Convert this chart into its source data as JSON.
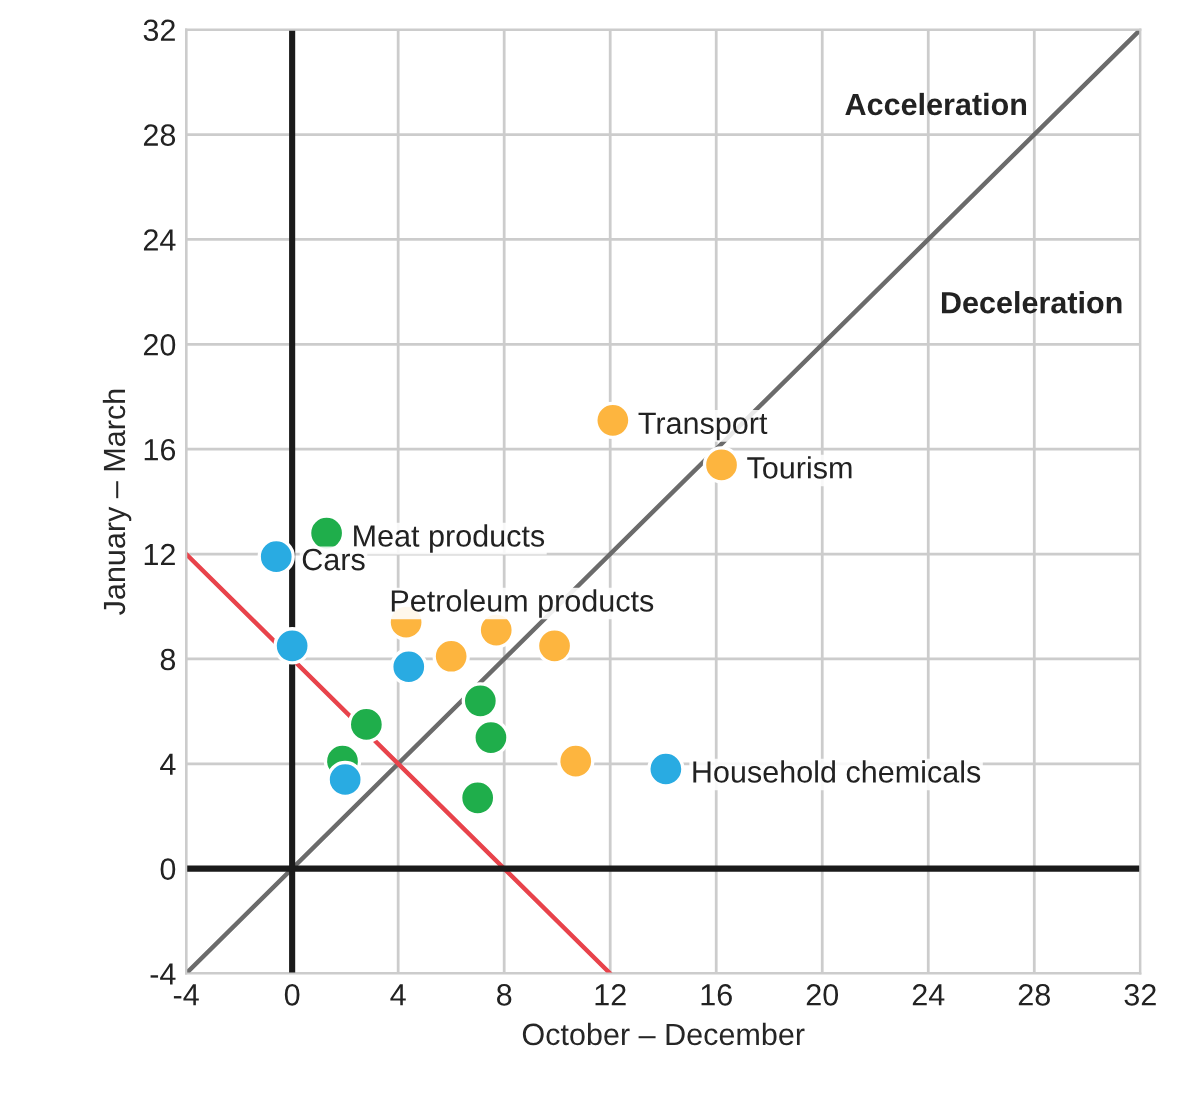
{
  "chart_data": {
    "type": "scatter",
    "xlabel": "October – December",
    "ylabel": "January – March",
    "xlim": [
      -4,
      32
    ],
    "ylim": [
      -4,
      32
    ],
    "xticks": [
      -4,
      0,
      4,
      8,
      12,
      16,
      20,
      24,
      28,
      32
    ],
    "yticks": [
      -4,
      0,
      4,
      8,
      12,
      16,
      20,
      24,
      28,
      32
    ],
    "grid": true,
    "marker": "circle",
    "series": [
      {
        "type": "line",
        "marker": "none",
        "color": "#1a1a1a",
        "x": [
          0,
          0
        ],
        "values": [
          -4,
          32
        ]
      },
      {
        "type": "line",
        "marker": "none",
        "color": "#1a1a1a",
        "x": [
          -4,
          32
        ],
        "values": [
          0,
          0
        ]
      },
      {
        "type": "line",
        "marker": "none",
        "color": "#6b6b6b",
        "x": [
          -4,
          32
        ],
        "values": [
          -4,
          32
        ]
      },
      {
        "type": "line",
        "marker": "none",
        "color": "#e8434b",
        "x": [
          -4,
          12
        ],
        "values": [
          12,
          -4
        ]
      },
      {
        "color": "#fdb53f",
        "x": [
          12.1,
          16.2,
          4.3,
          7.7,
          6.0,
          9.9,
          10.7
        ],
        "values": [
          17.1,
          15.4,
          9.4,
          9.1,
          8.1,
          8.5,
          4.1
        ]
      },
      {
        "color": "#1fae4b",
        "x": [
          1.3,
          7.1,
          2.8,
          7.5,
          1.9,
          7.0
        ],
        "values": [
          12.8,
          6.4,
          5.5,
          5.0,
          4.1,
          2.7
        ]
      },
      {
        "color": "#29abe2",
        "x": [
          -0.6,
          0.0,
          4.4,
          14.1,
          2.0
        ],
        "values": [
          11.9,
          8.5,
          7.7,
          3.8,
          3.4
        ]
      }
    ],
    "annotations": [
      "Acceleration",
      "Deceleration",
      {
        "text": "Transport",
        "x": 12.1,
        "y": 17.1
      },
      {
        "text": "Tourism",
        "x": 16.2,
        "y": 15.4
      },
      {
        "text": "Meat products",
        "x": 1.3,
        "y": 12.8
      },
      {
        "text": "Cars",
        "x": -0.6,
        "y": 11.9
      },
      "Petroleum products",
      {
        "text": "Household chemicals",
        "x": 14.1,
        "y": 3.8
      }
    ]
  }
}
